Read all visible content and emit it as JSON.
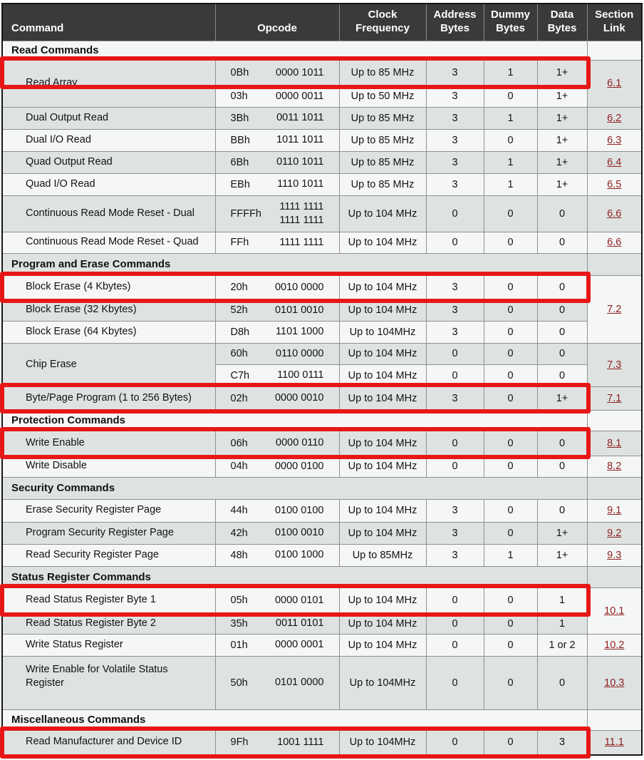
{
  "table": {
    "headers": {
      "command": "Command",
      "opcode": "Opcode",
      "clock": "Clock\nFrequency",
      "address": "Address\nBytes",
      "dummy": "Dummy\nBytes",
      "data": "Data\nBytes",
      "link": "Section\nLink"
    },
    "rows": [
      {
        "kind": "section",
        "label": "Read Commands"
      },
      {
        "kind": "command",
        "command": "Read Array",
        "cmdspan": 2,
        "hex": "0Bh",
        "bin": "0000 1011",
        "clock": "Up to 85 MHz",
        "addr": "3",
        "dummy": "1",
        "data": "1+",
        "link": "6.1",
        "linkspan": 2,
        "highlight": true
      },
      {
        "kind": "command",
        "hex": "03h",
        "bin": "0000 0011",
        "clock": "Up to 50 MHz",
        "addr": "3",
        "dummy": "0",
        "data": "1+"
      },
      {
        "kind": "command",
        "command": "Dual Output Read",
        "hex": "3Bh",
        "bin": "0011 1011",
        "clock": "Up to 85 MHz",
        "addr": "3",
        "dummy": "1",
        "data": "1+",
        "link": "6.2"
      },
      {
        "kind": "command",
        "command": "Dual I/O Read",
        "hex": "BBh",
        "bin": "1011 1011",
        "clock": "Up to 85 MHz",
        "addr": "3",
        "dummy": "0",
        "data": "1+",
        "link": "6.3"
      },
      {
        "kind": "command",
        "command": "Quad Output Read",
        "hex": "6Bh",
        "bin": "0110 1011",
        "clock": "Up to 85 MHz",
        "addr": "3",
        "dummy": "1",
        "data": "1+",
        "link": "6.4"
      },
      {
        "kind": "command",
        "command": "Quad I/O Read",
        "hex": "EBh",
        "bin": "1110 1011",
        "clock": "Up to 85 MHz",
        "addr": "3",
        "dummy": "1",
        "data": "1+",
        "link": "6.5"
      },
      {
        "kind": "command",
        "command": "Continuous Read Mode Reset - Dual",
        "hex": "FFFFh",
        "bin": "1111 1111\n1111 1111",
        "clock": "Up to 104 MHz",
        "addr": "0",
        "dummy": "0",
        "data": "0",
        "link": "6.6"
      },
      {
        "kind": "command",
        "command": "Continuous Read Mode Reset - Quad",
        "hex": "FFh",
        "bin": "1111 1111",
        "clock": "Up to 104 MHz",
        "addr": "0",
        "dummy": "0",
        "data": "0",
        "link": "6.6"
      },
      {
        "kind": "section",
        "label": "Program and Erase Commands"
      },
      {
        "kind": "command",
        "command": "Block Erase (4 Kbytes)",
        "hex": "20h",
        "bin": "0010 0000",
        "clock": "Up to 104 MHz",
        "addr": "3",
        "dummy": "0",
        "data": "0",
        "link": "7.2",
        "linkspan": 3,
        "highlight": true
      },
      {
        "kind": "command",
        "command": "Block Erase (32 Kbytes)",
        "hex": "52h",
        "bin": "0101 0010",
        "clock": "Up to 104 MHz",
        "addr": "3",
        "dummy": "0",
        "data": "0"
      },
      {
        "kind": "command",
        "command": "Block Erase (64 Kbytes)",
        "hex": "D8h",
        "bin": "1101 1000",
        "clock": "Up to 104MHz",
        "addr": "3",
        "dummy": "0",
        "data": "0"
      },
      {
        "kind": "command",
        "command": "Chip Erase",
        "cmdspan": 2,
        "hex": "60h",
        "bin": "0110 0000",
        "clock": "Up to 104 MHz",
        "addr": "0",
        "dummy": "0",
        "data": "0",
        "link": "7.3",
        "linkspan": 2
      },
      {
        "kind": "command",
        "hex": "C7h",
        "bin": "1100 0111",
        "clock": "Up to 104 MHz",
        "addr": "0",
        "dummy": "0",
        "data": "0"
      },
      {
        "kind": "command",
        "command": "Byte/Page Program (1 to 256 Bytes)",
        "hex": "02h",
        "bin": "0000 0010",
        "clock": "Up to 104 MHz",
        "addr": "3",
        "dummy": "0",
        "data": "1+",
        "link": "7.1",
        "highlight": true
      },
      {
        "kind": "section",
        "label": "Protection Commands"
      },
      {
        "kind": "command",
        "command": "Write Enable",
        "hex": "06h",
        "bin": "0000 0110",
        "clock": "Up to 104 MHz",
        "addr": "0",
        "dummy": "0",
        "data": "0",
        "link": "8.1",
        "highlight": true
      },
      {
        "kind": "command",
        "command": "Write Disable",
        "hex": "04h",
        "bin": "0000 0100",
        "clock": "Up to 104 MHz",
        "addr": "0",
        "dummy": "0",
        "data": "0",
        "link": "8.2"
      },
      {
        "kind": "section",
        "label": "Security Commands"
      },
      {
        "kind": "command",
        "command": "Erase Security Register Page",
        "hex": "44h",
        "bin": "0100 0100",
        "clock": "Up to 104 MHz",
        "addr": "3",
        "dummy": "0",
        "data": "0",
        "link": "9.1"
      },
      {
        "kind": "command",
        "command": "Program Security Register Page",
        "hex": "42h",
        "bin": "0100 0010",
        "clock": "Up to 104 MHz",
        "addr": "3",
        "dummy": "0",
        "data": "1+",
        "link": "9.2"
      },
      {
        "kind": "command",
        "command": "Read Security Register Page",
        "hex": "48h",
        "bin": "0100 1000",
        "clock": "Up to 85MHz",
        "addr": "3",
        "dummy": "1",
        "data": "1+",
        "link": "9.3"
      },
      {
        "kind": "section",
        "label": "Status Register Commands"
      },
      {
        "kind": "command",
        "command": "Read Status Register Byte 1",
        "hex": "05h",
        "bin": "0000 0101",
        "clock": "Up to 104 MHz",
        "addr": "0",
        "dummy": "0",
        "data": "1",
        "link": "10.1",
        "linkspan": 2,
        "highlight": true
      },
      {
        "kind": "command",
        "command": "Read Status Register Byte 2",
        "hex": "35h",
        "bin": "0011 0101",
        "clock": "Up to 104 MHz",
        "addr": "0",
        "dummy": "0",
        "data": "1"
      },
      {
        "kind": "command",
        "command": "Write Status Register",
        "hex": "01h",
        "bin": "0000 0001",
        "clock": "Up to 104 MHz",
        "addr": "0",
        "dummy": "0",
        "data": "1 or 2",
        "link": "10.2"
      },
      {
        "kind": "command",
        "command": "Write Enable for Volatile Status Register",
        "hex": "50h",
        "bin": "0101 0000",
        "clock": "Up to 104MHz",
        "addr": "0",
        "dummy": "0",
        "data": "0",
        "link": "10.3"
      },
      {
        "kind": "section",
        "label": "Miscellaneous Commands"
      },
      {
        "kind": "command",
        "command": "Read Manufacturer and Device ID",
        "hex": "9Fh",
        "bin": "1001 1111",
        "clock": "Up to 104MHz",
        "addr": "0",
        "dummy": "0",
        "data": "3",
        "link": "11.1",
        "highlight": true
      }
    ]
  },
  "colors": {
    "header_bg": "#3a3a3a",
    "row_gray": "#dee3e2",
    "row_white": "#f5f7f6",
    "highlight_red": "#e81717",
    "link_color": "#8e1f1f",
    "border": "#8f8f8f"
  }
}
